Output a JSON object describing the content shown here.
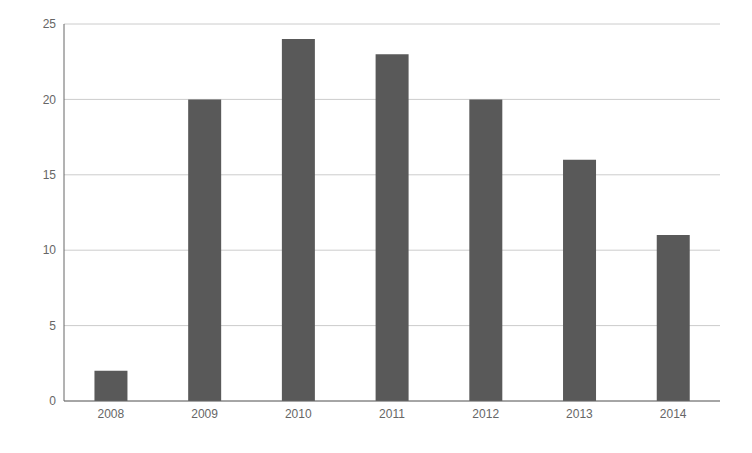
{
  "chart_data": {
    "type": "bar",
    "categories": [
      "2008",
      "2009",
      "2010",
      "2011",
      "2012",
      "2013",
      "2014"
    ],
    "values": [
      2,
      20,
      24,
      23,
      20,
      16,
      11
    ],
    "color": "#595959",
    "ylim": [
      0,
      25
    ],
    "yticks": [
      0,
      5,
      10,
      15,
      20,
      25
    ],
    "grid": true
  }
}
